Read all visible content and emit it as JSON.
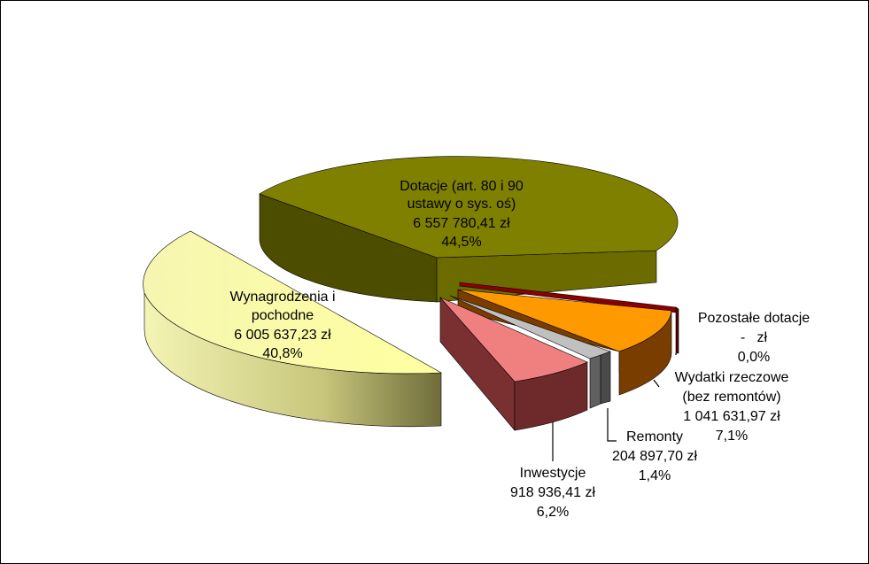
{
  "chart_data": {
    "type": "pie",
    "title": "",
    "currency": "zł",
    "slices": [
      {
        "name_lines": [
          "Dotacje (art. 80 i 90",
          "ustawy o sys. oś)"
        ],
        "amount": "6 557 780,41 zł",
        "value": 6557780.41,
        "percent": "44,5%",
        "color": "#808000"
      },
      {
        "name_lines": [
          "Pozostałe dotacje"
        ],
        "amount": "-   zł",
        "value": 0,
        "percent": "0,0%",
        "color": "#8b0000"
      },
      {
        "name_lines": [
          "Wydatki rzeczowe",
          "(bez remontów)"
        ],
        "amount": "1 041 631,97 zł",
        "value": 1041631.97,
        "percent": "7,1%",
        "color": "#ff9900"
      },
      {
        "name_lines": [
          "Remonty"
        ],
        "amount": "204 897,70 zł",
        "value": 204897.7,
        "percent": "1,4%",
        "color": "#c0c0c0"
      },
      {
        "name_lines": [
          "Inwestycje"
        ],
        "amount": "918 936,41 zł",
        "value": 918936.41,
        "percent": "6,2%",
        "color": "#f08080"
      },
      {
        "name_lines": [
          "Wynagrodzenia i",
          "pochodne"
        ],
        "amount": "6 005 637,23 zł",
        "value": 6005637.23,
        "percent": "40,8%",
        "color": "#f5f5a0"
      }
    ]
  }
}
